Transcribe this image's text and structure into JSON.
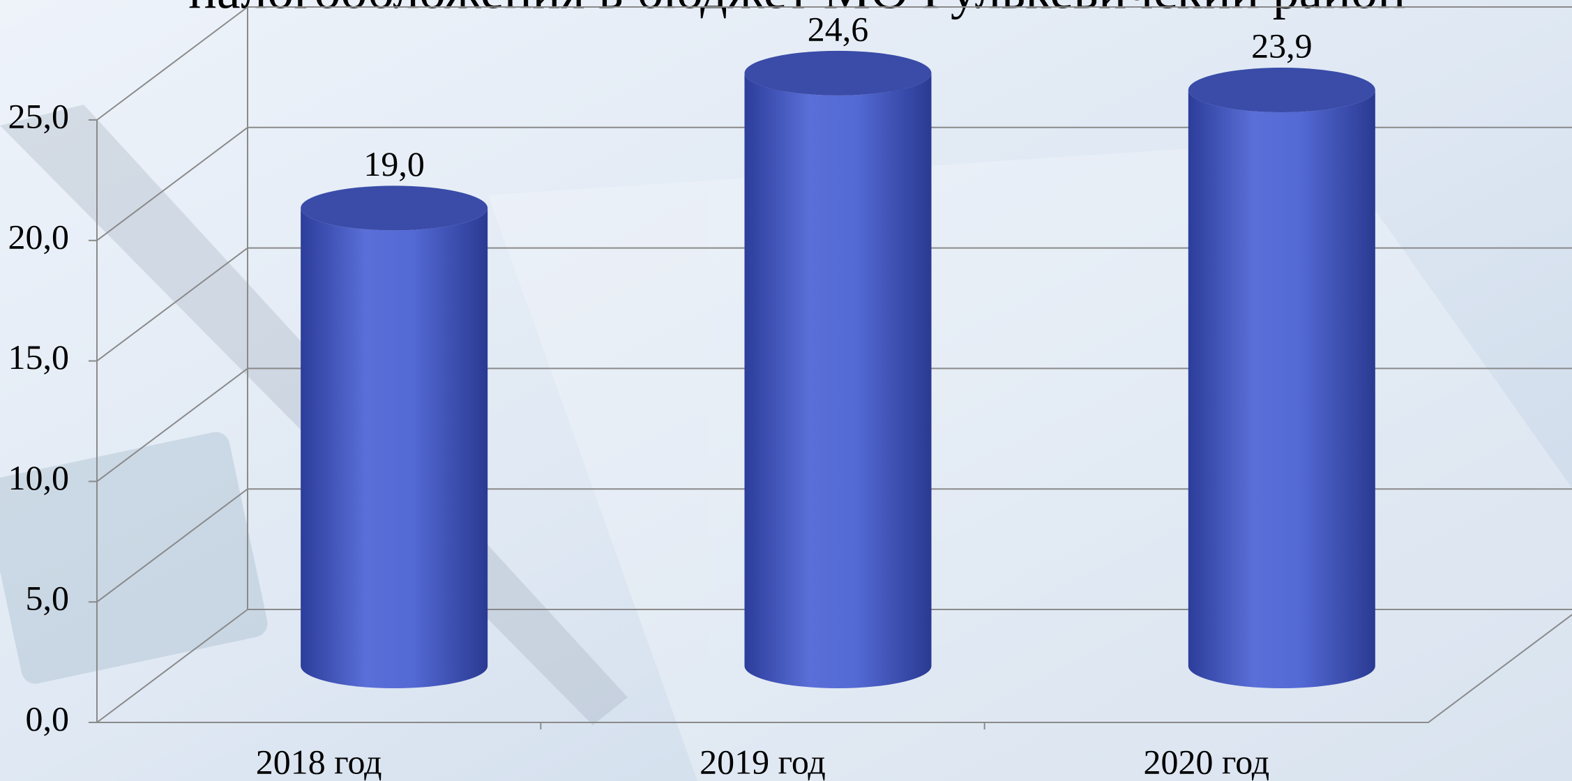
{
  "chart_data": {
    "type": "bar3d",
    "title": "налогообложения в бюджет МО Гулькевичский район",
    "categories": [
      "2018 год",
      "2019 год",
      "2020 год"
    ],
    "values": [
      19.0,
      24.6,
      23.9
    ],
    "value_labels": [
      "19,0",
      "24,6",
      "23,9"
    ],
    "color": "#4a5fcf",
    "ylim": [
      0,
      25
    ],
    "yticks": [
      {
        "value": 0,
        "label": "0,0"
      },
      {
        "value": 5,
        "label": "5,0"
      },
      {
        "value": 10,
        "label": "10,0"
      },
      {
        "value": 15,
        "label": "15,0"
      },
      {
        "value": 20,
        "label": "20,0"
      },
      {
        "value": 25,
        "label": "25,0"
      }
    ],
    "grid": true
  }
}
